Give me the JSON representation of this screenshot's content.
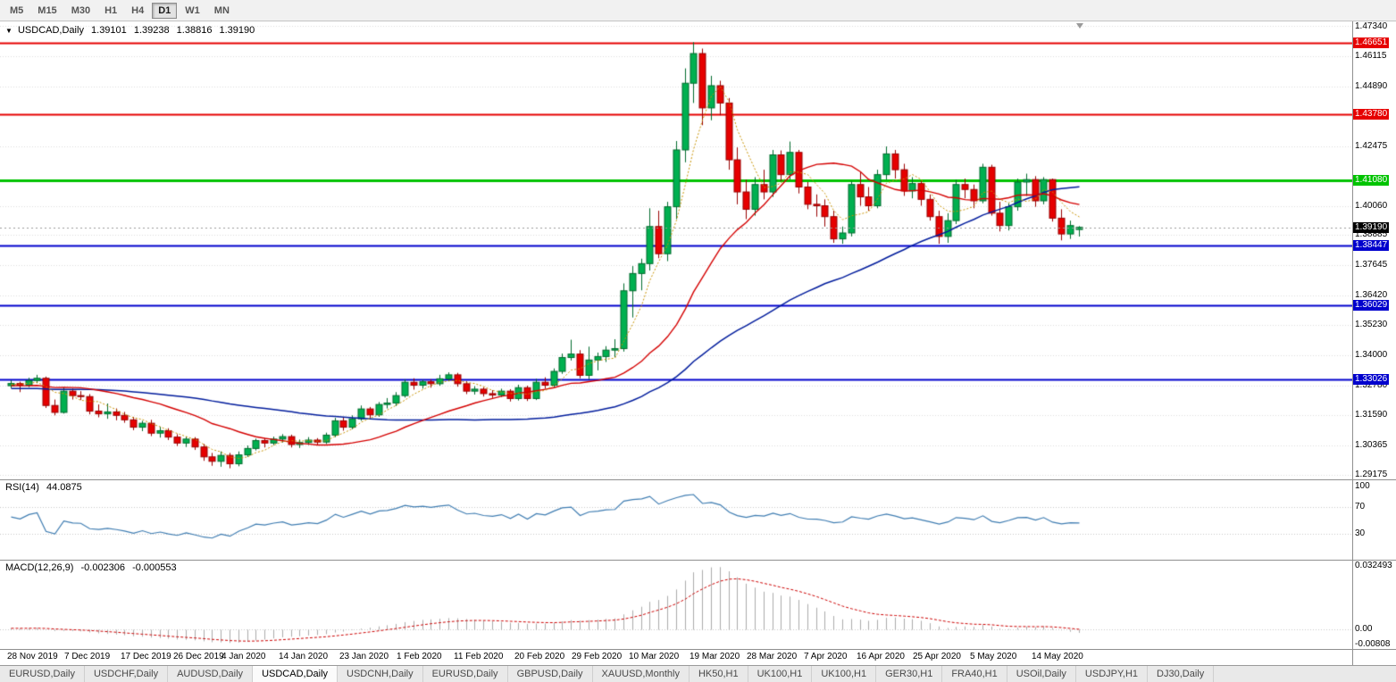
{
  "toolbar": {
    "timeframes": [
      "M5",
      "M15",
      "M30",
      "H1",
      "H4",
      "D1",
      "W1",
      "MN"
    ],
    "active": "D1"
  },
  "main_chart": {
    "collapse_arrow": "▼",
    "symbol": "USDCAD,Daily",
    "open": "1.39101",
    "high": "1.39238",
    "low": "1.38816",
    "close": "1.39190"
  },
  "rsi": {
    "label": "RSI(14)",
    "value": "44.0875",
    "color": "#3E7CB1",
    "ticks": [
      {
        "label": "100",
        "value": 100
      },
      {
        "label": "70",
        "value": 70
      },
      {
        "label": "30",
        "value": 30
      }
    ],
    "levels": [
      70,
      30
    ]
  },
  "macd": {
    "label": "MACD(12,26,9)",
    "main_value": "-0.002306",
    "signal_value": "-0.000553",
    "histogram_color": "#ABABAB",
    "signal_color": "#CC0000",
    "ticks": [
      {
        "label": "0.032493",
        "value": 0.032493
      },
      {
        "label": "0.00",
        "value": 0
      },
      {
        "label": "-0.00808",
        "value": -0.00808
      }
    ]
  },
  "tabs": {
    "items": [
      "EURUSD,Daily",
      "USDCHF,Daily",
      "AUDUSD,Daily",
      "USDCAD,Daily",
      "USDCNH,Daily",
      "EURUSD,Daily",
      "GBPUSD,Daily",
      "XAUUSD,Monthly",
      "HK50,H1",
      "UK100,H1",
      "UK100,H1",
      "GER30,H1",
      "FRA40,H1",
      "USOil,Daily",
      "USDJPY,H1",
      "DJ30,Daily"
    ],
    "active_index": 3
  },
  "chart_data": {
    "type": "candlestick",
    "symbol": "USDCAD",
    "timeframe": "Daily",
    "y_axis": {
      "min": 1.2899,
      "max": 1.4752,
      "ticks": [
        1.4734,
        1.46115,
        1.4489,
        1.42475,
        1.4006,
        1.38885,
        1.37645,
        1.3642,
        1.3523,
        1.34,
        1.3278,
        1.3159,
        1.30365,
        1.29175
      ]
    },
    "hlines": [
      {
        "price": 1.46651,
        "color": "#E60000",
        "width": 2
      },
      {
        "price": 1.4378,
        "color": "#E60000",
        "width": 2
      },
      {
        "price": 1.4108,
        "color": "#00C300",
        "width": 3
      },
      {
        "price": 1.38447,
        "color": "#0000CD",
        "width": 2
      },
      {
        "price": 1.36029,
        "color": "#0000CD",
        "width": 2
      },
      {
        "price": 1.33026,
        "color": "#0000CD",
        "width": 2
      }
    ],
    "current_price": 1.3919,
    "x_labels": [
      {
        "text": "28 Nov 2019",
        "i": 0
      },
      {
        "text": "7 Dec 2019",
        "i": 6.5
      },
      {
        "text": "17 Dec 2019",
        "i": 13
      },
      {
        "text": "26 Dec 2019",
        "i": 19
      },
      {
        "text": "4 Jan 2020",
        "i": 24.5
      },
      {
        "text": "14 Jan 2020",
        "i": 31
      },
      {
        "text": "23 Jan 2020",
        "i": 38
      },
      {
        "text": "1 Feb 2020",
        "i": 44.5
      },
      {
        "text": "11 Feb 2020",
        "i": 51
      },
      {
        "text": "20 Feb 2020",
        "i": 58
      },
      {
        "text": "29 Feb 2020",
        "i": 64.5
      },
      {
        "text": "10 Mar 2020",
        "i": 71
      },
      {
        "text": "19 Mar 2020",
        "i": 78
      },
      {
        "text": "28 Mar 2020",
        "i": 84.5
      },
      {
        "text": "7 Apr 2020",
        "i": 91
      },
      {
        "text": "16 Apr 2020",
        "i": 97
      },
      {
        "text": "25 Apr 2020",
        "i": 103.5
      },
      {
        "text": "5 May 2020",
        "i": 110
      },
      {
        "text": "14 May 2020",
        "i": 117
      }
    ],
    "style": {
      "bull": "#00B050",
      "bull_border": "#006B2D",
      "bear": "#E60000",
      "bear_border": "#990000",
      "ma_fast": "#C79200",
      "ma_mid": "#D40000",
      "ma_slow": "#001C9C",
      "grid": "#DCDCDC",
      "price_line": "#9A9A9A",
      "price_label_bg": "#000000"
    },
    "indicators": {
      "ma_fast_period": 5,
      "ma_mid_period": 20,
      "ma_slow_period": 50,
      "rsi_period": 14,
      "macd_fast": 12,
      "macd_slow": 26,
      "macd_signal": 9
    },
    "rsi_axis": {
      "min": 0,
      "max": 100
    },
    "macd_axis": {
      "min": -0.00808,
      "max": 0.032493
    },
    "warmup_closes": [
      1.3255,
      1.327,
      1.3285,
      1.33,
      1.329,
      1.327,
      1.325,
      1.3235,
      1.322,
      1.3205,
      1.3215,
      1.323,
      1.3245,
      1.326,
      1.3275,
      1.3285,
      1.327,
      1.3255,
      1.324,
      1.3228,
      1.324,
      1.3252,
      1.3265,
      1.3278,
      1.329,
      1.3282,
      1.327,
      1.3258,
      1.3248,
      1.326,
      1.3272,
      1.3284,
      1.3295,
      1.3288,
      1.3275,
      1.3262,
      1.325,
      1.3242,
      1.3255,
      1.3268,
      1.328,
      1.3292,
      1.33,
      1.3293,
      1.3285,
      1.3278,
      1.327,
      1.3282,
      1.329,
      1.3285
    ],
    "candles": [
      [
        1.3278,
        1.33,
        1.3268,
        1.3287
      ],
      [
        1.3287,
        1.3294,
        1.3252,
        1.328
      ],
      [
        1.328,
        1.331,
        1.3272,
        1.3299
      ],
      [
        1.3299,
        1.3322,
        1.3288,
        1.3308
      ],
      [
        1.3308,
        1.3315,
        1.3188,
        1.3198
      ],
      [
        1.3198,
        1.3222,
        1.3158,
        1.317
      ],
      [
        1.317,
        1.3272,
        1.3165,
        1.3256
      ],
      [
        1.3256,
        1.3266,
        1.3222,
        1.3238
      ],
      [
        1.3238,
        1.3256,
        1.322,
        1.3234
      ],
      [
        1.3234,
        1.3244,
        1.3162,
        1.3175
      ],
      [
        1.3175,
        1.3202,
        1.315,
        1.3164
      ],
      [
        1.3164,
        1.3206,
        1.3144,
        1.3172
      ],
      [
        1.3172,
        1.3186,
        1.3138,
        1.3158
      ],
      [
        1.3158,
        1.3172,
        1.3128,
        1.314
      ],
      [
        1.314,
        1.3152,
        1.3098,
        1.311
      ],
      [
        1.311,
        1.3136,
        1.3094,
        1.3126
      ],
      [
        1.3126,
        1.314,
        1.3074,
        1.3086
      ],
      [
        1.3086,
        1.3112,
        1.3068,
        1.3096
      ],
      [
        1.3096,
        1.3106,
        1.3058,
        1.307
      ],
      [
        1.307,
        1.3082,
        1.3034,
        1.3046
      ],
      [
        1.3046,
        1.3072,
        1.303,
        1.3062
      ],
      [
        1.3062,
        1.307,
        1.3018,
        1.303
      ],
      [
        1.303,
        1.3042,
        1.2974,
        1.299
      ],
      [
        1.299,
        1.3006,
        1.2954,
        1.2972
      ],
      [
        1.2972,
        1.3012,
        1.295,
        1.2996
      ],
      [
        1.2996,
        1.3006,
        1.2944,
        1.2962
      ],
      [
        1.2962,
        1.3012,
        1.2952,
        1.2998
      ],
      [
        1.2998,
        1.3036,
        1.299,
        1.3024
      ],
      [
        1.3024,
        1.3064,
        1.3016,
        1.3056
      ],
      [
        1.3056,
        1.3066,
        1.3028,
        1.3046
      ],
      [
        1.3046,
        1.3072,
        1.3038,
        1.3062
      ],
      [
        1.3062,
        1.3082,
        1.3048,
        1.3072
      ],
      [
        1.3072,
        1.308,
        1.3028,
        1.304
      ],
      [
        1.304,
        1.306,
        1.3026,
        1.3048
      ],
      [
        1.3048,
        1.307,
        1.3038,
        1.3058
      ],
      [
        1.3058,
        1.3066,
        1.3038,
        1.305
      ],
      [
        1.305,
        1.3088,
        1.3042,
        1.3078
      ],
      [
        1.3078,
        1.3148,
        1.307,
        1.3136
      ],
      [
        1.3136,
        1.3152,
        1.3096,
        1.311
      ],
      [
        1.311,
        1.3158,
        1.3102,
        1.3144
      ],
      [
        1.3144,
        1.3198,
        1.3136,
        1.3184
      ],
      [
        1.3184,
        1.3192,
        1.3146,
        1.316
      ],
      [
        1.316,
        1.3212,
        1.3152,
        1.3202
      ],
      [
        1.3202,
        1.3228,
        1.3186,
        1.3208
      ],
      [
        1.3208,
        1.3252,
        1.3196,
        1.3238
      ],
      [
        1.3238,
        1.3304,
        1.323,
        1.3292
      ],
      [
        1.3292,
        1.3308,
        1.3262,
        1.328
      ],
      [
        1.328,
        1.3302,
        1.3266,
        1.3294
      ],
      [
        1.3294,
        1.3304,
        1.327,
        1.3286
      ],
      [
        1.3286,
        1.3322,
        1.3278,
        1.3306
      ],
      [
        1.3306,
        1.3332,
        1.3296,
        1.3322
      ],
      [
        1.3322,
        1.333,
        1.3274,
        1.3286
      ],
      [
        1.3286,
        1.3296,
        1.3244,
        1.3256
      ],
      [
        1.3256,
        1.3276,
        1.3242,
        1.3264
      ],
      [
        1.3264,
        1.3272,
        1.3234,
        1.3246
      ],
      [
        1.3246,
        1.326,
        1.3228,
        1.324
      ],
      [
        1.324,
        1.3266,
        1.3232,
        1.3256
      ],
      [
        1.3256,
        1.3264,
        1.3214,
        1.3226
      ],
      [
        1.3226,
        1.3282,
        1.3218,
        1.327
      ],
      [
        1.327,
        1.3278,
        1.3216,
        1.3226
      ],
      [
        1.3226,
        1.3306,
        1.322,
        1.3292
      ],
      [
        1.3292,
        1.3312,
        1.3266,
        1.328
      ],
      [
        1.328,
        1.3348,
        1.3272,
        1.3336
      ],
      [
        1.3336,
        1.3408,
        1.3326,
        1.3392
      ],
      [
        1.3392,
        1.3464,
        1.338,
        1.3406
      ],
      [
        1.3406,
        1.3422,
        1.3308,
        1.332
      ],
      [
        1.332,
        1.3436,
        1.3304,
        1.3382
      ],
      [
        1.3382,
        1.3412,
        1.334,
        1.3396
      ],
      [
        1.3396,
        1.3438,
        1.3374,
        1.3422
      ],
      [
        1.3422,
        1.3466,
        1.3394,
        1.3428
      ],
      [
        1.3428,
        1.3692,
        1.3416,
        1.3662
      ],
      [
        1.3662,
        1.3762,
        1.3554,
        1.3732
      ],
      [
        1.3732,
        1.3792,
        1.3664,
        1.3772
      ],
      [
        1.3772,
        1.3996,
        1.3744,
        1.3922
      ],
      [
        1.3922,
        1.3986,
        1.3794,
        1.3812
      ],
      [
        1.3812,
        1.4022,
        1.3782,
        1.4002
      ],
      [
        1.4002,
        1.4268,
        1.3952,
        1.4232
      ],
      [
        1.4232,
        1.4562,
        1.4182,
        1.4502
      ],
      [
        1.4502,
        1.4668,
        1.4422,
        1.4622
      ],
      [
        1.4622,
        1.4642,
        1.4332,
        1.4402
      ],
      [
        1.4402,
        1.4532,
        1.4352,
        1.4492
      ],
      [
        1.4492,
        1.4512,
        1.4372,
        1.4422
      ],
      [
        1.4422,
        1.4442,
        1.4152,
        1.4192
      ],
      [
        1.4192,
        1.4242,
        1.4012,
        1.4062
      ],
      [
        1.4062,
        1.4112,
        1.3952,
        1.3992
      ],
      [
        1.3992,
        1.4122,
        1.3966,
        1.4092
      ],
      [
        1.4092,
        1.4152,
        1.4032,
        1.4062
      ],
      [
        1.4062,
        1.4232,
        1.4042,
        1.4212
      ],
      [
        1.4212,
        1.423,
        1.4106,
        1.4132
      ],
      [
        1.4132,
        1.4266,
        1.4112,
        1.4222
      ],
      [
        1.4222,
        1.4232,
        1.4056,
        1.4082
      ],
      [
        1.4082,
        1.4102,
        1.3992,
        1.4012
      ],
      [
        1.4012,
        1.4052,
        1.3962,
        1.4006
      ],
      [
        1.4006,
        1.4032,
        1.3922,
        1.3962
      ],
      [
        1.3962,
        1.3986,
        1.3856,
        1.3872
      ],
      [
        1.3872,
        1.3922,
        1.3852,
        1.3896
      ],
      [
        1.3896,
        1.4106,
        1.3882,
        1.4092
      ],
      [
        1.4092,
        1.4142,
        1.4006,
        1.4042
      ],
      [
        1.4042,
        1.4082,
        1.3986,
        1.4006
      ],
      [
        1.4006,
        1.4152,
        1.3996,
        1.4132
      ],
      [
        1.4132,
        1.4246,
        1.4112,
        1.4216
      ],
      [
        1.4216,
        1.4232,
        1.4116,
        1.4152
      ],
      [
        1.4152,
        1.4176,
        1.4046,
        1.4066
      ],
      [
        1.4066,
        1.4122,
        1.4036,
        1.4096
      ],
      [
        1.4096,
        1.4106,
        1.4006,
        1.4032
      ],
      [
        1.4032,
        1.4052,
        1.3946,
        1.3962
      ],
      [
        1.3962,
        1.3986,
        1.3852,
        1.3882
      ],
      [
        1.3882,
        1.3976,
        1.3856,
        1.3946
      ],
      [
        1.3946,
        1.4112,
        1.3932,
        1.4092
      ],
      [
        1.4092,
        1.4116,
        1.4036,
        1.4072
      ],
      [
        1.4072,
        1.4092,
        1.3996,
        1.4026
      ],
      [
        1.4026,
        1.4176,
        1.4016,
        1.4162
      ],
      [
        1.4162,
        1.4172,
        1.3966,
        1.3976
      ],
      [
        1.3976,
        1.4022,
        1.3902,
        1.3926
      ],
      [
        1.3926,
        1.4016,
        1.3906,
        1.4002
      ],
      [
        1.4002,
        1.4116,
        1.3986,
        1.4102
      ],
      [
        1.4102,
        1.4136,
        1.4046,
        1.4112
      ],
      [
        1.4112,
        1.4126,
        1.4002,
        1.4026
      ],
      [
        1.4026,
        1.4122,
        1.4012,
        1.4112
      ],
      [
        1.4112,
        1.4116,
        1.3942,
        1.3956
      ],
      [
        1.3956,
        1.3992,
        1.3866,
        1.3892
      ],
      [
        1.3892,
        1.3946,
        1.3872,
        1.3926
      ],
      [
        1.39101,
        1.39238,
        1.38816,
        1.3919
      ]
    ]
  }
}
